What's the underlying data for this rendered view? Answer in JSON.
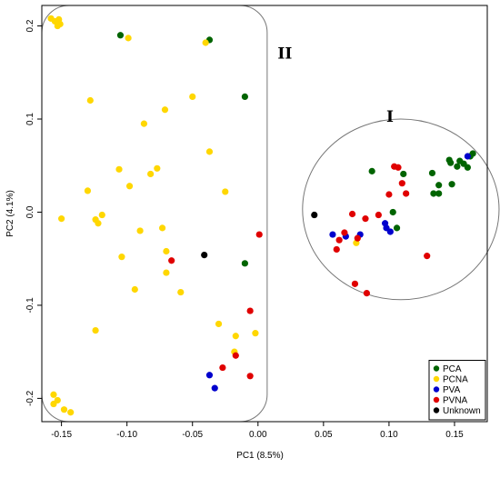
{
  "chart_data": {
    "type": "scatter",
    "title": "",
    "xlabel": "PC1 (8.5%)",
    "ylabel": "PC2 (4.1%)",
    "xlim": [
      -0.165,
      0.175
    ],
    "ylim": [
      -0.225,
      0.222
    ],
    "x_ticks": [
      {
        "value": -0.15,
        "label": "-0.15"
      },
      {
        "value": -0.1,
        "label": "-0.10"
      },
      {
        "value": -0.05,
        "label": "-0.05"
      },
      {
        "value": 0.0,
        "label": "0.00"
      },
      {
        "value": 0.05,
        "label": "0.05"
      },
      {
        "value": 0.1,
        "label": "0.10"
      },
      {
        "value": 0.15,
        "label": "0.15"
      }
    ],
    "y_ticks": [
      {
        "value": -0.2,
        "label": "-0.2"
      },
      {
        "value": -0.1,
        "label": "-0.1"
      },
      {
        "value": 0.0,
        "label": "0.0"
      },
      {
        "value": 0.1,
        "label": "0.1"
      },
      {
        "value": 0.2,
        "label": "0.2"
      }
    ],
    "grid": false,
    "legend_position": "bottom-right",
    "clusters": [
      {
        "label": "II",
        "shape": "rounded-rectangle",
        "x_range": [
          -0.165,
          0.007
        ],
        "y_range": [
          -0.225,
          0.222
        ],
        "label_at": [
          0.015,
          0.165
        ]
      },
      {
        "label": "I",
        "shape": "ellipse",
        "center": [
          0.109,
          0.003
        ],
        "radius": [
          0.075,
          0.097
        ],
        "label_at": [
          0.098,
          0.097
        ]
      }
    ],
    "series": [
      {
        "name": "PCA",
        "color": "#006400",
        "points": [
          [
            -0.105,
            0.19
          ],
          [
            -0.037,
            0.185
          ],
          [
            -0.01,
            0.124
          ],
          [
            -0.01,
            -0.055
          ],
          [
            0.087,
            0.044
          ],
          [
            0.103,
            0.0
          ],
          [
            0.106,
            -0.017
          ],
          [
            0.111,
            0.041
          ],
          [
            0.133,
            0.042
          ],
          [
            0.134,
            0.02
          ],
          [
            0.138,
            0.029
          ],
          [
            0.138,
            0.02
          ],
          [
            0.146,
            0.056
          ],
          [
            0.147,
            0.053
          ],
          [
            0.148,
            0.03
          ],
          [
            0.152,
            0.049
          ],
          [
            0.154,
            0.055
          ],
          [
            0.157,
            0.052
          ],
          [
            0.16,
            0.048
          ],
          [
            0.162,
            0.06
          ],
          [
            0.164,
            0.063
          ]
        ]
      },
      {
        "name": "PCNA",
        "color": "#FFD700",
        "points": [
          [
            -0.158,
            0.208
          ],
          [
            -0.155,
            0.205
          ],
          [
            -0.153,
            0.2
          ],
          [
            -0.152,
            0.207
          ],
          [
            -0.151,
            0.202
          ],
          [
            -0.099,
            0.187
          ],
          [
            -0.04,
            0.182
          ],
          [
            -0.128,
            0.12
          ],
          [
            -0.05,
            0.124
          ],
          [
            -0.071,
            0.11
          ],
          [
            -0.087,
            0.095
          ],
          [
            -0.037,
            0.065
          ],
          [
            -0.106,
            0.046
          ],
          [
            -0.077,
            0.047
          ],
          [
            -0.082,
            0.041
          ],
          [
            -0.13,
            0.023
          ],
          [
            -0.098,
            0.028
          ],
          [
            -0.025,
            0.022
          ],
          [
            -0.15,
            -0.007
          ],
          [
            -0.119,
            -0.003
          ],
          [
            -0.124,
            -0.008
          ],
          [
            -0.122,
            -0.012
          ],
          [
            -0.09,
            -0.02
          ],
          [
            -0.073,
            -0.017
          ],
          [
            -0.07,
            -0.042
          ],
          [
            -0.104,
            -0.048
          ],
          [
            -0.07,
            -0.065
          ],
          [
            -0.059,
            -0.086
          ],
          [
            -0.094,
            -0.083
          ],
          [
            -0.124,
            -0.127
          ],
          [
            -0.03,
            -0.12
          ],
          [
            -0.017,
            -0.133
          ],
          [
            -0.018,
            -0.15
          ],
          [
            -0.002,
            -0.13
          ],
          [
            -0.156,
            -0.196
          ],
          [
            -0.156,
            -0.206
          ],
          [
            -0.153,
            -0.202
          ],
          [
            -0.148,
            -0.212
          ],
          [
            -0.143,
            -0.215
          ],
          [
            0.075,
            -0.033
          ]
        ]
      },
      {
        "name": "PVA",
        "color": "#0000CD",
        "points": [
          [
            -0.037,
            -0.175
          ],
          [
            -0.033,
            -0.189
          ],
          [
            0.057,
            -0.024
          ],
          [
            0.067,
            -0.026
          ],
          [
            0.078,
            -0.024
          ],
          [
            0.097,
            -0.012
          ],
          [
            0.098,
            -0.017
          ],
          [
            0.101,
            -0.021
          ],
          [
            0.16,
            0.06
          ]
        ]
      },
      {
        "name": "PVNA",
        "color": "#E00000",
        "points": [
          [
            0.001,
            -0.024
          ],
          [
            -0.066,
            -0.052
          ],
          [
            -0.006,
            -0.106
          ],
          [
            -0.017,
            -0.154
          ],
          [
            -0.027,
            -0.167
          ],
          [
            -0.006,
            -0.176
          ],
          [
            0.06,
            -0.04
          ],
          [
            0.062,
            -0.03
          ],
          [
            0.066,
            -0.022
          ],
          [
            0.072,
            -0.002
          ],
          [
            0.076,
            -0.028
          ],
          [
            0.082,
            -0.007
          ],
          [
            0.1,
            0.019
          ],
          [
            0.104,
            0.049
          ],
          [
            0.107,
            0.048
          ],
          [
            0.11,
            0.031
          ],
          [
            0.113,
            0.02
          ],
          [
            0.092,
            -0.003
          ],
          [
            0.074,
            -0.077
          ],
          [
            0.083,
            -0.087
          ],
          [
            0.129,
            -0.047
          ]
        ]
      },
      {
        "name": "Unknown",
        "color": "#000000",
        "points": [
          [
            -0.041,
            -0.046
          ],
          [
            0.043,
            -0.003
          ]
        ]
      }
    ]
  }
}
